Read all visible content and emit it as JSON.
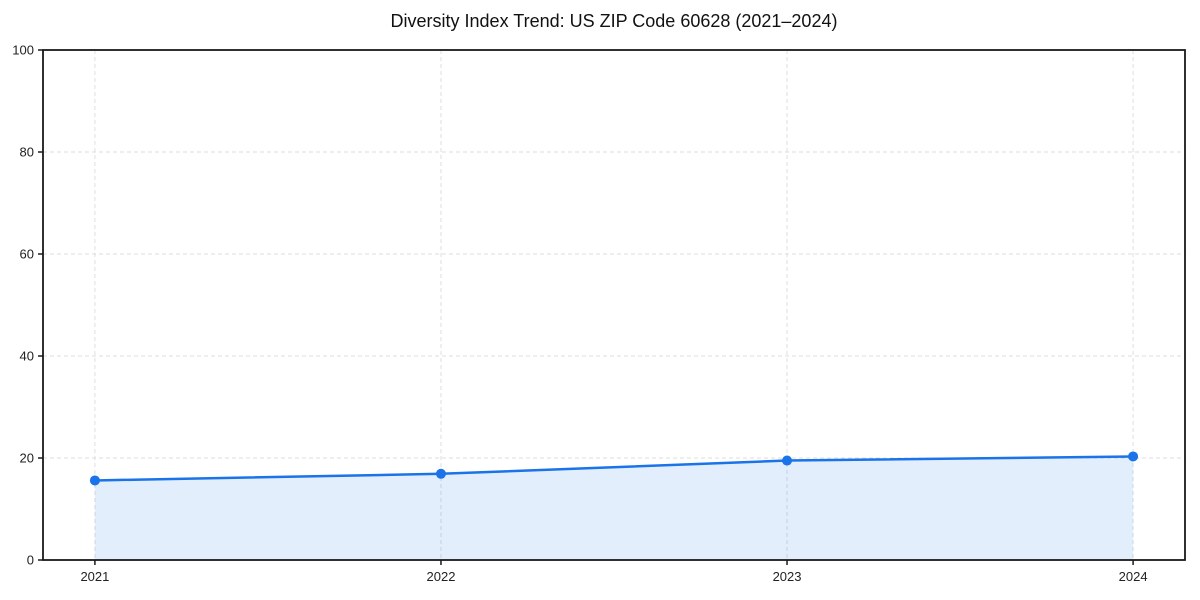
{
  "chart_data": {
    "type": "area",
    "title": "Diversity Index Trend: US ZIP Code 60628 (2021–2024)",
    "categories": [
      "2021",
      "2022",
      "2023",
      "2024"
    ],
    "series": [
      {
        "name": "Diversity Index",
        "values": [
          15.6,
          16.9,
          19.5,
          20.3
        ]
      }
    ],
    "xlabel": "",
    "ylabel": "",
    "ylim": [
      0,
      100
    ],
    "yticks": [
      0,
      20,
      40,
      60,
      80,
      100
    ],
    "grid": true,
    "grid_style": "dashed",
    "legend": false,
    "marker": "circle",
    "colors": {
      "line": "#1a73e8",
      "marker": "#1a73e8",
      "fill": "rgba(26,115,232,0.12)",
      "grid": "#dedede",
      "axis": "#1a1a1a",
      "tick_label": "#222222",
      "title": "#111111",
      "background": "#ffffff"
    }
  }
}
